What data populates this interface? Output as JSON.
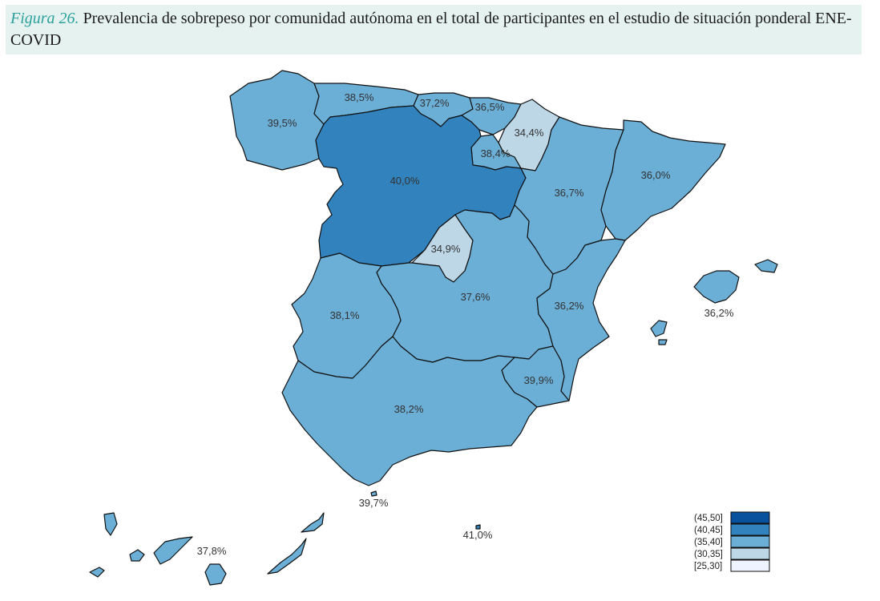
{
  "caption": {
    "label": "Figura 26.",
    "text": "Prevalencia de sobrepeso por comunidad autónoma en el total de participantes en el estudio de situación ponderal ENE-COVID"
  },
  "colors": {
    "c45_50": "#08519c",
    "c40_45": "#3182bd",
    "c35_40": "#6baed6",
    "c30_35": "#bdd7e7",
    "c25_30": "#eff3ff",
    "border": "#111111"
  },
  "regions": [
    {
      "id": "galicia",
      "value": "39,5%",
      "bin": "c35_40"
    },
    {
      "id": "asturias",
      "value": "38,5%",
      "bin": "c35_40"
    },
    {
      "id": "cantabria",
      "value": "37,2%",
      "bin": "c35_40"
    },
    {
      "id": "pais-vasco",
      "value": "36,5%",
      "bin": "c35_40"
    },
    {
      "id": "navarra",
      "value": "34,4%",
      "bin": "c30_35"
    },
    {
      "id": "la-rioja",
      "value": "38,4%",
      "bin": "c35_40"
    },
    {
      "id": "castilla-y-leon",
      "value": "40,0%",
      "bin": "c40_45"
    },
    {
      "id": "aragon",
      "value": "36,7%",
      "bin": "c35_40"
    },
    {
      "id": "cataluna",
      "value": "36,0%",
      "bin": "c35_40"
    },
    {
      "id": "madrid",
      "value": "34,9%",
      "bin": "c30_35"
    },
    {
      "id": "castilla-la-mancha",
      "value": "37,6%",
      "bin": "c35_40"
    },
    {
      "id": "extremadura",
      "value": "38,1%",
      "bin": "c35_40"
    },
    {
      "id": "comunidad-valenciana",
      "value": "36,2%",
      "bin": "c35_40"
    },
    {
      "id": "murcia",
      "value": "39,9%",
      "bin": "c35_40"
    },
    {
      "id": "andalucia",
      "value": "38,2%",
      "bin": "c35_40"
    },
    {
      "id": "baleares",
      "value": "36,2%",
      "bin": "c35_40"
    },
    {
      "id": "ceuta",
      "value": "39,7%",
      "bin": "c35_40"
    },
    {
      "id": "melilla",
      "value": "41,0%",
      "bin": "c40_45"
    },
    {
      "id": "canarias",
      "value": "37,8%",
      "bin": "c35_40"
    }
  ],
  "legend": {
    "items": [
      {
        "label": "(45,50]",
        "bin": "c45_50"
      },
      {
        "label": "(40,45]",
        "bin": "c40_45"
      },
      {
        "label": "(35,40]",
        "bin": "c35_40"
      },
      {
        "label": "(30,35]",
        "bin": "c30_35"
      },
      {
        "label": "[25,30]",
        "bin": "c25_30"
      }
    ]
  }
}
